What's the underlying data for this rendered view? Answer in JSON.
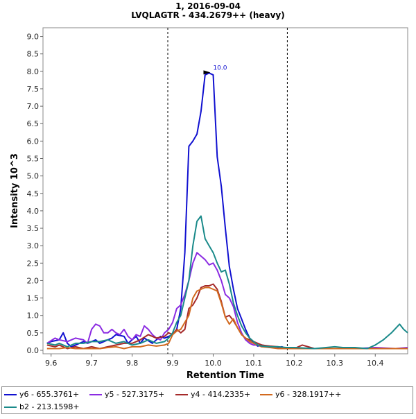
{
  "chart_data": {
    "type": "line",
    "title": "1, 2016-09-04",
    "subtitle": "LVQLAGTR - 434.2679++ (heavy)",
    "xlabel": "Retention Time",
    "ylabel": "Intensity 10^3",
    "xlim": [
      9.58,
      10.48
    ],
    "ylim": [
      -0.1,
      9.25
    ],
    "xticks": [
      "9.6",
      "9.7",
      "9.8",
      "9.9",
      "10.0",
      "10.1",
      "10.2",
      "10.3",
      "10.4"
    ],
    "yticks": [
      "0.0",
      "0.5",
      "1.0",
      "1.5",
      "2.0",
      "2.5",
      "3.0",
      "3.5",
      "4.0",
      "4.5",
      "5.0",
      "5.5",
      "6.0",
      "6.5",
      "7.0",
      "7.5",
      "8.0",
      "8.5",
      "9.0"
    ],
    "boundaries": [
      9.888,
      10.183
    ],
    "peak_label": {
      "x": 10.0,
      "y": 7.95,
      "text": "10.0"
    },
    "grid": false,
    "legend_position": "bottom",
    "series": [
      {
        "name": "y6 - 655.3761+",
        "color": "#1010d0",
        "x": [
          9.59,
          9.6,
          9.62,
          9.63,
          9.64,
          9.65,
          9.66,
          9.68,
          9.69,
          9.7,
          9.71,
          9.72,
          9.73,
          9.74,
          9.75,
          9.76,
          9.78,
          9.79,
          9.8,
          9.81,
          9.82,
          9.83,
          9.85,
          9.86,
          9.87,
          9.88,
          9.89,
          9.9,
          9.91,
          9.92,
          9.93,
          9.94,
          9.95,
          9.96,
          9.97,
          9.98,
          9.99,
          10.0,
          10.01,
          10.02,
          10.03,
          10.04,
          10.05,
          10.06,
          10.07,
          10.08,
          10.09,
          10.1,
          10.11,
          10.12,
          10.13,
          10.14,
          10.15,
          10.16,
          10.17,
          10.18,
          10.2,
          10.22,
          10.25,
          10.3,
          10.35,
          10.4,
          10.45,
          10.48
        ],
        "y": [
          0.2,
          0.25,
          0.3,
          0.5,
          0.2,
          0.1,
          0.15,
          0.25,
          0.2,
          0.25,
          0.3,
          0.2,
          0.25,
          0.3,
          0.35,
          0.45,
          0.4,
          0.2,
          0.3,
          0.4,
          0.2,
          0.35,
          0.2,
          0.3,
          0.4,
          0.35,
          0.4,
          0.45,
          0.6,
          1.2,
          2.8,
          5.85,
          6.0,
          6.2,
          6.85,
          7.9,
          7.95,
          7.9,
          5.55,
          4.7,
          3.5,
          2.4,
          1.75,
          1.2,
          0.9,
          0.6,
          0.35,
          0.2,
          0.12,
          0.15,
          0.12,
          0.1,
          0.1,
          0.08,
          0.1,
          0.05,
          0.08,
          0.05,
          0.05,
          0.05,
          0.05,
          0.05,
          0.05,
          0.05
        ]
      },
      {
        "name": "y5 - 527.3175+",
        "color": "#8b2be2",
        "x": [
          9.59,
          9.61,
          9.62,
          9.64,
          9.65,
          9.66,
          9.68,
          9.69,
          9.7,
          9.71,
          9.72,
          9.73,
          9.74,
          9.75,
          9.76,
          9.77,
          9.78,
          9.79,
          9.8,
          9.81,
          9.82,
          9.83,
          9.84,
          9.85,
          9.86,
          9.87,
          9.88,
          9.89,
          9.9,
          9.91,
          9.92,
          9.93,
          9.94,
          9.95,
          9.96,
          9.97,
          9.98,
          9.99,
          10.0,
          10.01,
          10.02,
          10.03,
          10.04,
          10.05,
          10.06,
          10.07,
          10.08,
          10.09,
          10.1,
          10.11,
          10.12,
          10.13,
          10.14,
          10.15,
          10.16,
          10.18,
          10.2,
          10.25,
          10.3,
          10.35,
          10.4,
          10.45,
          10.48
        ],
        "y": [
          0.2,
          0.35,
          0.3,
          0.25,
          0.3,
          0.35,
          0.3,
          0.2,
          0.6,
          0.75,
          0.7,
          0.5,
          0.5,
          0.6,
          0.5,
          0.45,
          0.6,
          0.4,
          0.3,
          0.45,
          0.4,
          0.7,
          0.6,
          0.45,
          0.35,
          0.3,
          0.5,
          0.6,
          0.8,
          1.2,
          1.3,
          1.6,
          2.0,
          2.5,
          2.8,
          2.7,
          2.6,
          2.45,
          2.5,
          2.3,
          2.0,
          1.6,
          1.5,
          1.25,
          0.8,
          0.5,
          0.3,
          0.2,
          0.15,
          0.15,
          0.1,
          0.1,
          0.08,
          0.08,
          0.1,
          0.05,
          0.05,
          0.05,
          0.05,
          0.05,
          0.08,
          0.05,
          0.08
        ]
      },
      {
        "name": "y4 - 414.2335+",
        "color": "#a52a2a",
        "x": [
          9.59,
          9.61,
          9.62,
          9.64,
          9.66,
          9.68,
          9.7,
          9.72,
          9.74,
          9.76,
          9.78,
          9.8,
          9.82,
          9.84,
          9.86,
          9.88,
          9.89,
          9.9,
          9.91,
          9.92,
          9.93,
          9.94,
          9.95,
          9.96,
          9.97,
          9.98,
          9.99,
          10.0,
          10.01,
          10.02,
          10.03,
          10.04,
          10.05,
          10.06,
          10.07,
          10.08,
          10.09,
          10.1,
          10.11,
          10.12,
          10.14,
          10.16,
          10.18,
          10.2,
          10.22,
          10.25,
          10.3,
          10.35,
          10.4,
          10.45,
          10.48
        ],
        "y": [
          0.15,
          0.1,
          0.15,
          0.05,
          0.1,
          0.05,
          0.1,
          0.05,
          0.1,
          0.15,
          0.2,
          0.2,
          0.3,
          0.45,
          0.35,
          0.4,
          0.5,
          0.45,
          0.6,
          0.5,
          0.6,
          1.2,
          1.3,
          1.5,
          1.8,
          1.85,
          1.85,
          1.9,
          1.75,
          1.4,
          0.95,
          1.0,
          0.85,
          0.65,
          0.45,
          0.35,
          0.3,
          0.25,
          0.2,
          0.15,
          0.12,
          0.1,
          0.05,
          0.05,
          0.15,
          0.05,
          0.05,
          0.05,
          0.05,
          0.05,
          0.05
        ]
      },
      {
        "name": "y6 - 328.1917++",
        "color": "#d2691e",
        "x": [
          9.59,
          9.61,
          9.62,
          9.64,
          9.66,
          9.68,
          9.7,
          9.72,
          9.74,
          9.76,
          9.78,
          9.8,
          9.82,
          9.84,
          9.86,
          9.88,
          9.89,
          9.9,
          9.91,
          9.92,
          9.93,
          9.94,
          9.95,
          9.96,
          9.97,
          9.98,
          9.99,
          10.0,
          10.01,
          10.02,
          10.03,
          10.04,
          10.05,
          10.06,
          10.07,
          10.08,
          10.09,
          10.1,
          10.11,
          10.12,
          10.14,
          10.16,
          10.18,
          10.2,
          10.25,
          10.3,
          10.35,
          10.4,
          10.45,
          10.48
        ],
        "y": [
          0.05,
          0.05,
          0.05,
          0.08,
          0.05,
          0.05,
          0.05,
          0.05,
          0.08,
          0.1,
          0.05,
          0.1,
          0.1,
          0.15,
          0.12,
          0.15,
          0.2,
          0.45,
          0.55,
          0.6,
          0.8,
          1.0,
          1.5,
          1.7,
          1.75,
          1.8,
          1.8,
          1.75,
          1.7,
          1.35,
          0.95,
          0.75,
          0.9,
          0.65,
          0.45,
          0.35,
          0.25,
          0.2,
          0.15,
          0.1,
          0.08,
          0.05,
          0.05,
          0.05,
          0.05,
          0.05,
          0.05,
          0.05,
          0.05,
          0.05
        ]
      },
      {
        "name": "b2 - 213.1598+",
        "color": "#1a8a8a",
        "x": [
          9.59,
          9.61,
          9.62,
          9.64,
          9.66,
          9.68,
          9.7,
          9.72,
          9.74,
          9.76,
          9.78,
          9.8,
          9.82,
          9.84,
          9.86,
          9.88,
          9.89,
          9.9,
          9.91,
          9.92,
          9.93,
          9.94,
          9.95,
          9.96,
          9.97,
          9.98,
          9.99,
          10.0,
          10.01,
          10.02,
          10.03,
          10.04,
          10.05,
          10.06,
          10.07,
          10.08,
          10.09,
          10.1,
          10.11,
          10.12,
          10.14,
          10.16,
          10.18,
          10.2,
          10.25,
          10.3,
          10.32,
          10.35,
          10.38,
          10.4,
          10.42,
          10.44,
          10.46,
          10.47,
          10.48
        ],
        "y": [
          0.2,
          0.15,
          0.2,
          0.1,
          0.2,
          0.2,
          0.25,
          0.25,
          0.3,
          0.2,
          0.25,
          0.15,
          0.2,
          0.3,
          0.2,
          0.25,
          0.35,
          0.5,
          0.8,
          1.0,
          1.5,
          2.0,
          3.0,
          3.7,
          3.85,
          3.2,
          3.0,
          2.8,
          2.5,
          2.25,
          2.3,
          1.9,
          1.35,
          1.0,
          0.7,
          0.5,
          0.35,
          0.25,
          0.15,
          0.12,
          0.1,
          0.1,
          0.08,
          0.08,
          0.05,
          0.1,
          0.08,
          0.08,
          0.05,
          0.15,
          0.3,
          0.5,
          0.75,
          0.6,
          0.5
        ]
      }
    ]
  }
}
